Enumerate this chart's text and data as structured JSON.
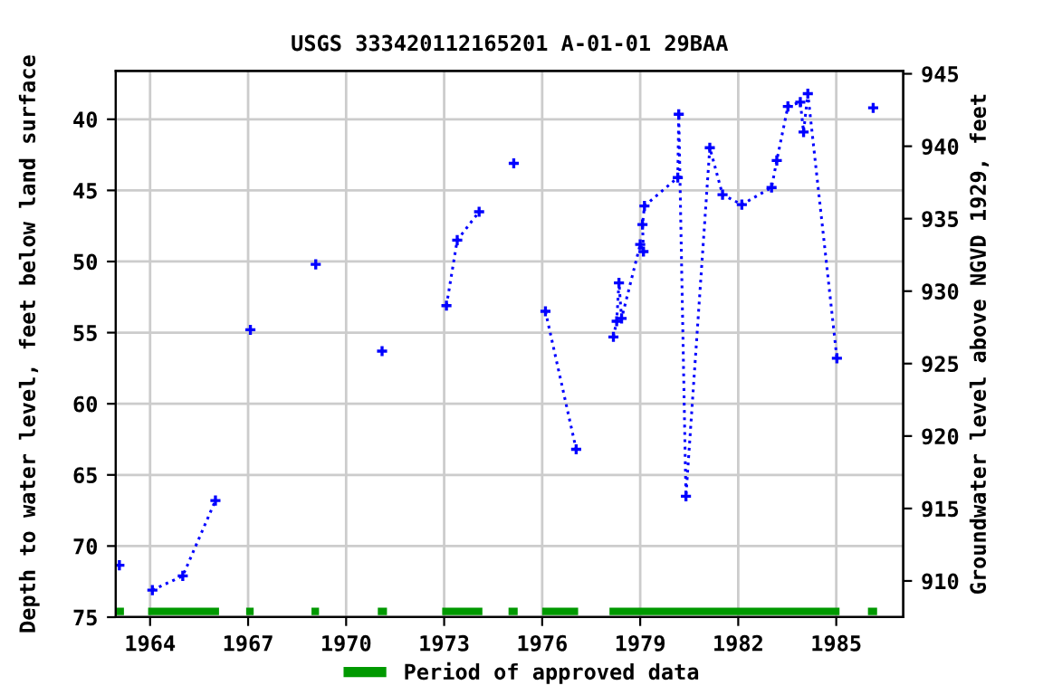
{
  "chart_data": {
    "type": "line",
    "title": "USGS 333420112165201 A-01-01 29BAA",
    "ylabel": "Depth to water level, feet below land surface",
    "y2label": "Groundwater level above NGVD 1929, feet",
    "x": [
      1963.06,
      1963.5,
      1964.07,
      1965.0,
      1966.0,
      1966.5,
      1967.07,
      1968.0,
      1969.07,
      1970.0,
      1971.1,
      1972.0,
      1973.07,
      1973.4,
      1974.07,
      1974.6,
      1975.13,
      1975.6,
      1976.1,
      1977.04,
      1977.6,
      1978.18,
      1978.28,
      1978.35,
      1978.43,
      1979.0,
      1979.1,
      1979.07,
      1979.13,
      1980.15,
      1980.18,
      1980.4,
      1981.13,
      1981.52,
      1982.11,
      1983.02,
      1983.18,
      1983.52,
      1983.9,
      1984.0,
      1984.13,
      1985.02,
      1985.6,
      1986.13
    ],
    "series": [
      {
        "color": "#0000ff",
        "values": [
          71.35,
          null,
          73.1,
          72.1,
          66.8,
          null,
          54.8,
          null,
          50.2,
          null,
          56.3,
          null,
          53.1,
          48.5,
          46.5,
          null,
          43.1,
          null,
          53.5,
          63.2,
          null,
          55.3,
          54.2,
          51.5,
          54.0,
          48.8,
          49.3,
          47.4,
          46.1,
          44.1,
          39.65,
          66.5,
          42.0,
          45.3,
          46.0,
          44.8,
          42.9,
          39.1,
          38.8,
          40.9,
          38.2,
          56.8,
          null,
          39.2
        ]
      },
      {
        "name": "Period of approved data",
        "color": "#009900",
        "line_style": "solid",
        "marker": "none",
        "x": [
          1962.97,
          1963.2,
          1963.5,
          1963.94,
          1966.11,
          1966.5,
          1966.94,
          1967.17,
          1968.0,
          1968.94,
          1969.17,
          1970.0,
          1970.97,
          1971.25,
          1972.0,
          1972.94,
          1974.17,
          1974.5,
          1974.97,
          1975.25,
          1975.5,
          1976.0,
          1977.1,
          1977.5,
          1978.06,
          1985.1,
          1985.5,
          1985.97,
          1986.25
        ],
        "values": [
          74.6,
          74.6,
          null,
          74.6,
          74.6,
          null,
          74.6,
          74.6,
          null,
          74.6,
          74.6,
          null,
          74.6,
          74.6,
          null,
          74.6,
          74.6,
          null,
          74.6,
          74.6,
          null,
          74.6,
          74.6,
          null,
          74.6,
          74.6,
          null,
          74.6,
          74.6
        ]
      }
    ],
    "marker": "cross",
    "line_style": "dotted",
    "xlim": [
      1962.95,
      1987.05
    ],
    "xticks": [
      1964,
      1967,
      1970,
      1973,
      1976,
      1979,
      1982,
      1985
    ],
    "ylim": [
      75,
      36.6
    ],
    "yticks": [
      40,
      45,
      50,
      55,
      60,
      65,
      70,
      75
    ],
    "y2lim": [
      907.5,
      945.2
    ],
    "y2ticks": [
      910,
      915,
      920,
      925,
      930,
      935,
      940,
      945
    ],
    "grid": true,
    "legend": "bottom"
  }
}
